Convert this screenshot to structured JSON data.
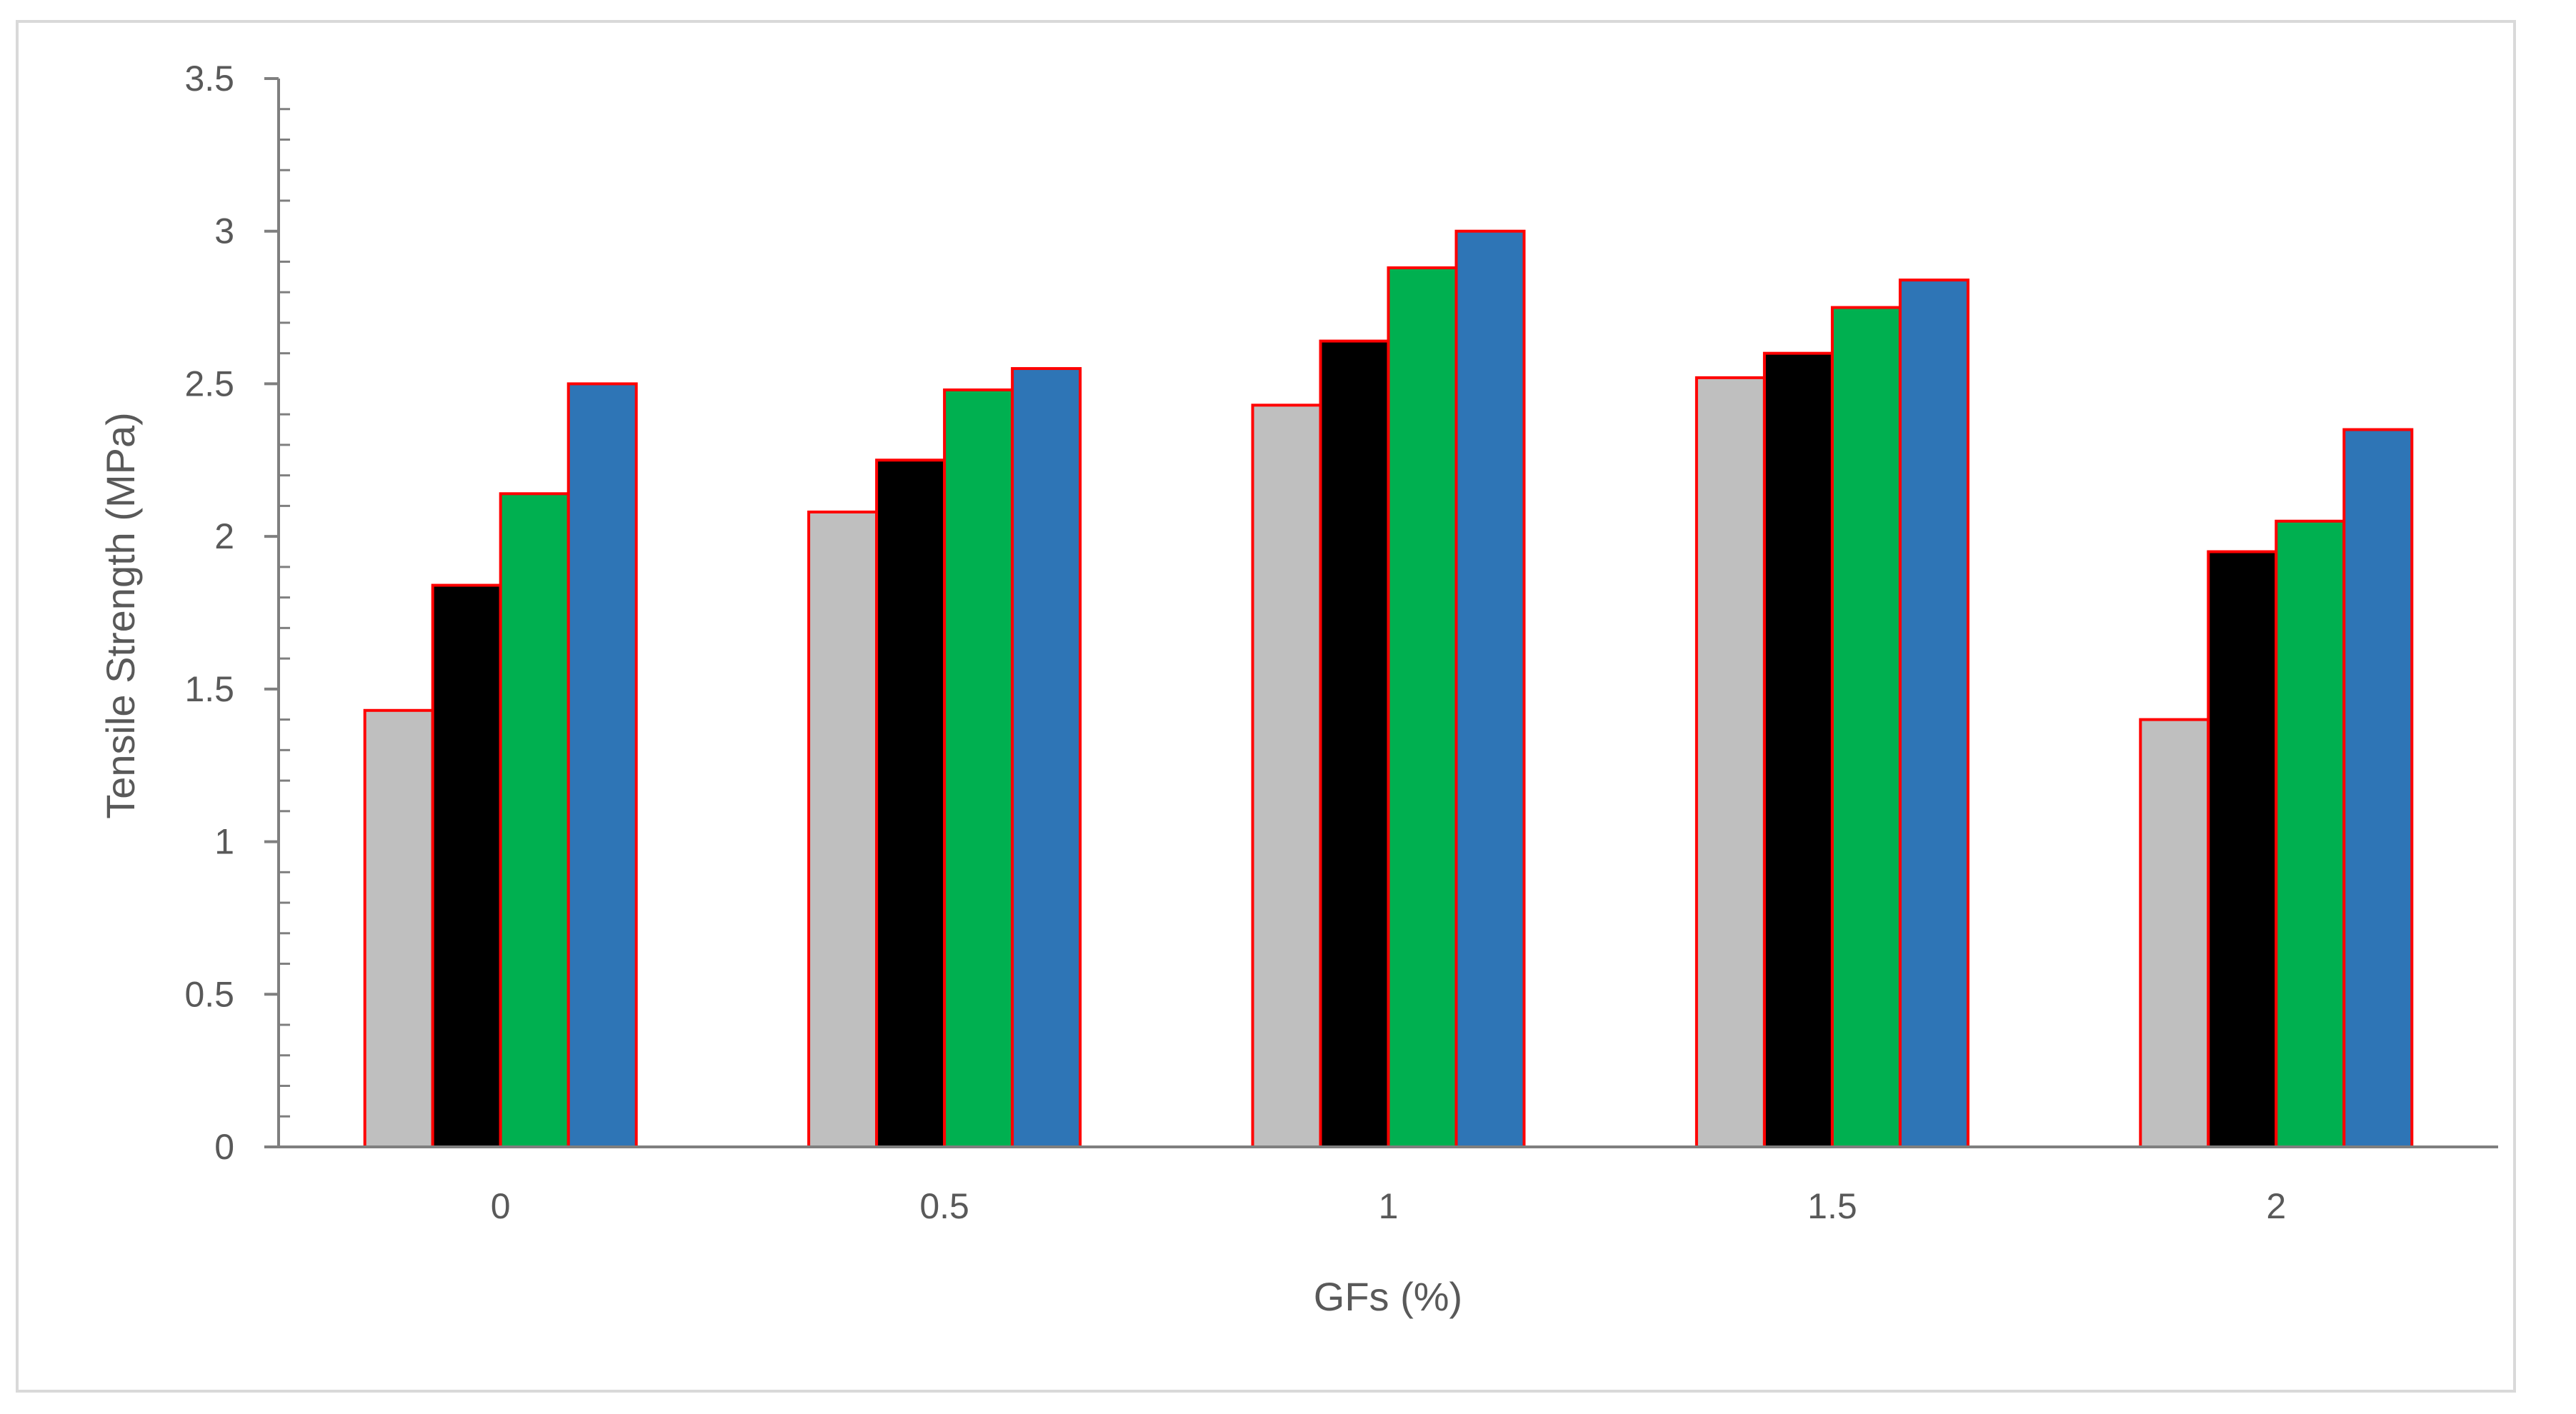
{
  "chart_data": {
    "type": "bar",
    "categories": [
      "0",
      "0.5",
      "1",
      "1.5",
      "2"
    ],
    "series": [
      {
        "values": [
          1.43,
          2.08,
          2.43,
          2.52,
          1.4
        ],
        "color": "#bfbfbf"
      },
      {
        "values": [
          1.84,
          2.25,
          2.64,
          2.6,
          1.95
        ],
        "color": "#000000"
      },
      {
        "values": [
          2.14,
          2.48,
          2.88,
          2.75,
          2.05
        ],
        "color": "#00b050"
      },
      {
        "values": [
          2.5,
          2.55,
          3.0,
          2.84,
          2.35
        ],
        "color": "#2e75b6"
      }
    ],
    "bar_border_color": "#ff0000",
    "axis_color": "#7f7f7f",
    "title": "",
    "xlabel": "GFs (%)",
    "ylabel": "Tensile  Strength (MPa)",
    "ylim": [
      0,
      3.5
    ],
    "yticks": [
      "0",
      "0.5",
      "1",
      "1.5",
      "2",
      "2.5",
      "3",
      "3.5"
    ],
    "grid": false,
    "legend": "none"
  }
}
